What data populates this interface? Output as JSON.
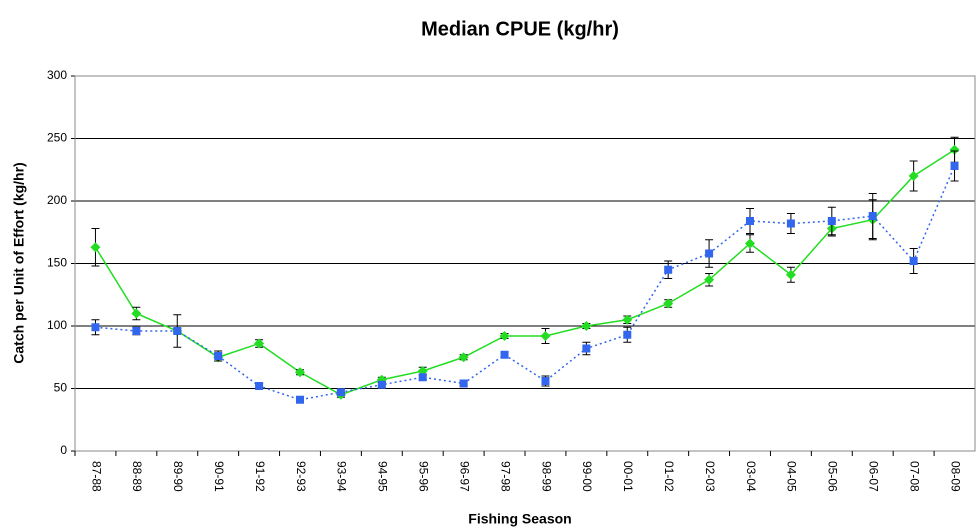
{
  "chart_data": {
    "type": "line",
    "title": "Median CPUE (kg/hr)",
    "x_label": "Fishing Season",
    "y_label": "Catch per Unit of Effort (kg/hr)",
    "categories": [
      "87-88",
      "88-89",
      "89-90",
      "90-91",
      "91-92",
      "92-93",
      "93-94",
      "94-95",
      "95-96",
      "96-97",
      "97-98",
      "98-99",
      "99-00",
      "00-01",
      "01-02",
      "02-03",
      "03-04",
      "04-05",
      "05-06",
      "06-07",
      "07-08",
      "08-09"
    ],
    "series": [
      {
        "color": "#22dd22",
        "marker": "diamond",
        "dash": "solid",
        "values": [
          163,
          110,
          96,
          75,
          86,
          63,
          45,
          57,
          64,
          75,
          92,
          92,
          100,
          105,
          118,
          137,
          166,
          141,
          178,
          185,
          220,
          241
        ],
        "errors": [
          15,
          5,
          2,
          3,
          3,
          2,
          2,
          2,
          3,
          2,
          2,
          6,
          2,
          3,
          3,
          5,
          7,
          6,
          6,
          16,
          12,
          10
        ]
      },
      {
        "color": "#3366ee",
        "marker": "square",
        "dash": "dotted",
        "values": [
          99,
          96,
          96,
          76,
          52,
          41,
          47,
          53,
          59,
          54,
          77,
          56,
          82,
          93,
          145,
          158,
          184,
          182,
          184,
          188,
          152,
          228
        ],
        "errors": [
          6,
          3,
          13,
          4,
          2,
          2,
          2,
          2,
          2,
          2,
          2,
          4,
          5,
          6,
          7,
          11,
          10,
          8,
          11,
          18,
          10,
          12
        ]
      }
    ],
    "ylim": [
      0,
      300
    ],
    "yticks": [
      0,
      50,
      100,
      150,
      200,
      250,
      300
    ],
    "grid": true
  }
}
